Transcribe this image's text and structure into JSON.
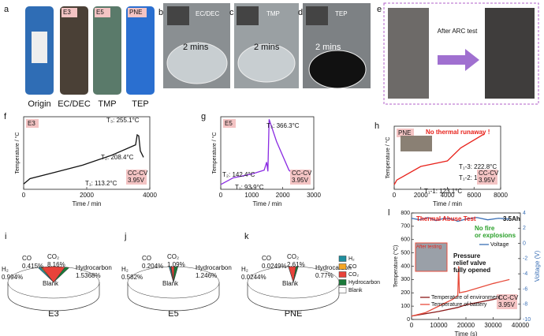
{
  "photos": {
    "a": {
      "panel": "a",
      "tags": [
        "E3",
        "E5",
        "PNE"
      ],
      "captions": [
        "Origin",
        "EC/DEC",
        "TMP",
        "TEP"
      ]
    },
    "b": {
      "panel": "b",
      "label": "EC/DEC",
      "time": "2 mins"
    },
    "c": {
      "panel": "c",
      "label": "TMP",
      "time": "2 mins"
    },
    "d": {
      "panel": "d",
      "label": "TEP",
      "time": "2 mins"
    },
    "e": {
      "panel": "e",
      "label": "After ARC test"
    }
  },
  "chart_data": [
    {
      "type": "line",
      "panel": "f",
      "tag": "E3",
      "x_label": "Time / min",
      "y_label": "Temperature / °C",
      "xlim": [
        0,
        4000
      ],
      "xticks": [
        0,
        2000,
        4000
      ],
      "ylim": [
        0,
        340
      ],
      "annotations": [
        "T₃: 255.1°C",
        "T₂: 208.4°C",
        "T₁: 113.2°C"
      ],
      "condition": [
        "CC-CV",
        "3.95V"
      ],
      "series": [
        {
          "color": "#111111",
          "x": [
            0,
            200,
            1000,
            1870,
            2800,
            3550,
            3600,
            3650,
            3700,
            3800
          ],
          "values": [
            25,
            50,
            80,
            113.2,
            160,
            208.4,
            255.1,
            250,
            180,
            150
          ]
        }
      ]
    },
    {
      "type": "line",
      "panel": "g",
      "tag": "E5",
      "x_label": "Time / min",
      "y_label": "Temperature / °C",
      "xlim": [
        0,
        3000
      ],
      "xticks": [
        0,
        1000,
        2000,
        3000
      ],
      "ylim": [
        0,
        380
      ],
      "annotations": [
        "T₃: 366.3°C",
        "T₂: 142.4°C",
        "T₁: 93.9°C"
      ],
      "condition": [
        "CC-CV",
        "3.95V"
      ],
      "series": [
        {
          "color": "#8a2be2",
          "x": [
            0,
            400,
            1000,
            1400,
            1480,
            1520,
            1560,
            1800,
            2200,
            2500
          ],
          "values": [
            25,
            60,
            80,
            100,
            142.4,
            93.9,
            366.3,
            250,
            100,
            60
          ]
        }
      ]
    },
    {
      "type": "line",
      "panel": "h",
      "tag": "PNE",
      "title": "No thermal runaway !",
      "x_label": "Time / min",
      "y_label": "Temperature / °C",
      "xlim": [
        0,
        8000
      ],
      "xticks": [
        0,
        2000,
        4000,
        6000,
        8000
      ],
      "ylim": [
        0,
        340
      ],
      "annotations": [
        "T₁-3: 222.8°C",
        "T₁-2: 153°C",
        "T₁-1: 123.1°C"
      ],
      "condition": [
        "CC-CV",
        "3.95V"
      ],
      "series": [
        {
          "color": "#e8221b",
          "x": [
            0,
            200,
            2000,
            4000,
            5000,
            6800
          ],
          "values": [
            25,
            50,
            123.1,
            153,
            222.8,
            300
          ]
        }
      ]
    },
    {
      "type": "pie",
      "panel": "i",
      "title": "E3",
      "categories": [
        "H₂",
        "CO",
        "CO₂",
        "Hydrocarbon",
        "Blank"
      ],
      "values": [
        0.994,
        0.415,
        8.16,
        1.5368,
        88.8942
      ],
      "value_labels": [
        "0.994%",
        "0.415%",
        "8.16%",
        "1.5368%",
        null
      ],
      "colors": [
        "#1f8f9f",
        "#f5a623",
        "#e8423a",
        "#1a7a3a",
        "#ffffff"
      ]
    },
    {
      "type": "pie",
      "panel": "j",
      "title": "E5",
      "categories": [
        "H₂",
        "CO",
        "CO₂",
        "Hydrocarbon",
        "Blank"
      ],
      "values": [
        0.582,
        0.204,
        1.09,
        1.246,
        96.878
      ],
      "value_labels": [
        "0.582%",
        "0.204%",
        "1.09%",
        "1.246%",
        null
      ],
      "colors": [
        "#1f8f9f",
        "#f5a623",
        "#e8423a",
        "#1a7a3a",
        "#ffffff"
      ]
    },
    {
      "type": "pie",
      "panel": "k",
      "title": "PNE",
      "legend": true,
      "categories": [
        "H₂",
        "CO",
        "CO₂",
        "Hydrocarbon",
        "Blank"
      ],
      "values": [
        0.0244,
        0.0249,
        2.61,
        0.77,
        96.5707
      ],
      "value_labels": [
        "0.0244%",
        "0.0249%",
        "2.61%",
        "0.77%",
        null
      ],
      "colors": [
        "#1f8f9f",
        "#f5a623",
        "#e8423a",
        "#1a7a3a",
        "#ffffff"
      ]
    },
    {
      "type": "line",
      "panel": "l",
      "title": "Thermal Abuse Test",
      "capacity": "3.5Ah",
      "notes": [
        "No fire",
        "or explosions"
      ],
      "inset": "After testing",
      "annotation": [
        "Pressure",
        "relief valve",
        "fully opened"
      ],
      "condition": [
        "CC-CV",
        "3.95V"
      ],
      "x_label": "Time (s)",
      "y_label": "Temperature (°C)",
      "y2_label": "Voltage (V)",
      "xlim": [
        0,
        40000
      ],
      "xticks": [
        0,
        10000,
        20000,
        30000,
        40000
      ],
      "ylim": [
        0,
        800
      ],
      "yticks": [
        0,
        100,
        200,
        300,
        400,
        500,
        600,
        700,
        800
      ],
      "y2lim": [
        -10,
        4
      ],
      "y2ticks": [
        -10,
        -8,
        -6,
        -4,
        -2,
        0,
        2,
        4
      ],
      "series": [
        {
          "name": "Voltage",
          "color": "#3a6fb5",
          "axis": "y2",
          "x": [
            0,
            3000,
            6000,
            9000,
            12000,
            15000,
            17000,
            20000,
            24000,
            28000,
            32000,
            36000
          ],
          "values": [
            3.3,
            3.1,
            3.4,
            3.0,
            3.3,
            3.2,
            2.9,
            3.2,
            3.4,
            3.1,
            3.3,
            3.2
          ]
        },
        {
          "name": "Temperature of environment",
          "color": "#8b1a1a",
          "x": [
            0,
            10000,
            17000,
            20000,
            30000,
            36000
          ],
          "values": [
            25,
            60,
            90,
            110,
            150,
            180
          ]
        },
        {
          "name": "Temperature of battery",
          "color": "#e74c3c",
          "x": [
            0,
            5000,
            10000,
            15000,
            17000,
            17300,
            17600,
            20000,
            25000,
            30000,
            36000
          ],
          "values": [
            25,
            50,
            100,
            150,
            180,
            400,
            200,
            210,
            240,
            270,
            300
          ]
        }
      ]
    }
  ]
}
